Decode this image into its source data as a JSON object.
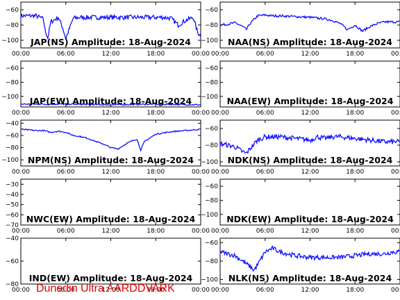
{
  "footer": "Dunedin Ultra AARDDVARK",
  "colors": {
    "trace": "#1010ff",
    "axis": "#000000",
    "footer": "#e00000"
  },
  "x_tick_labels": [
    "00:00",
    "06:00",
    "12:00",
    "18:00",
    "00:00"
  ],
  "chart_data": [
    {
      "type": "line",
      "title": "JAP(NS) Amplitude: 18-Aug-2024",
      "x_range": [
        0,
        24
      ],
      "ylim": [
        -110,
        -50
      ],
      "y_ticks": [
        -60,
        -80,
        -100
      ],
      "series": [
        {
          "x": [
            0,
            1,
            2,
            3,
            3.2,
            3.6,
            4,
            5,
            5.6,
            6,
            7,
            8,
            10,
            12,
            14,
            16,
            18,
            19,
            20,
            21,
            22,
            23,
            23.6,
            24
          ],
          "y": [
            -68,
            -68,
            -68,
            -72,
            -85,
            -97,
            -76,
            -70,
            -84,
            -98,
            -71,
            -70,
            -70,
            -70,
            -70,
            -70,
            -70,
            -70,
            -71,
            -80,
            -74,
            -70,
            -90,
            -94
          ],
          "noise": 6
        }
      ]
    },
    {
      "type": "line",
      "title": "NAA(NS) Amplitude: 18-Aug-2024",
      "x_range": [
        0,
        24
      ],
      "ylim": [
        -110,
        -50
      ],
      "y_ticks": [
        -60,
        -80,
        -100
      ],
      "series": [
        {
          "x": [
            0,
            1,
            2,
            3,
            3.5,
            4,
            5,
            6,
            7,
            8,
            10,
            12,
            14,
            15,
            16,
            17,
            18,
            19,
            20,
            21,
            22,
            23,
            24
          ],
          "y": [
            -80,
            -79,
            -77,
            -82,
            -86,
            -78,
            -68,
            -67,
            -68,
            -68,
            -69,
            -70,
            -72,
            -74,
            -78,
            -86,
            -80,
            -88,
            -82,
            -78,
            -76,
            -76,
            -76
          ],
          "noise": 3
        }
      ]
    },
    {
      "type": "line",
      "title": "JAP(EW) Amplitude: 18-Aug-2024",
      "x_range": [
        0,
        24
      ],
      "ylim": [
        -115,
        -50
      ],
      "y_ticks": [
        -60,
        -80,
        -100
      ],
      "series": [
        {
          "x": [
            0,
            6,
            12,
            18,
            24
          ],
          "y": [
            -111,
            -111,
            -112,
            -111,
            -112
          ],
          "noise": 2
        }
      ]
    },
    {
      "type": "line",
      "title": "NAA(EW) Amplitude: 18-Aug-2024",
      "x_range": [
        0,
        24
      ],
      "ylim": [
        -115,
        -50
      ],
      "y_ticks": [
        -60,
        -80,
        -100
      ],
      "series": []
    },
    {
      "type": "line",
      "title": "NPM(NS) Amplitude: 18-Aug-2024",
      "x_range": [
        0,
        24
      ],
      "ylim": [
        -110,
        -35
      ],
      "y_ticks": [
        -40,
        -60,
        -80,
        -100
      ],
      "series": [
        {
          "x": [
            0,
            2,
            3,
            4,
            5,
            6,
            7,
            8,
            9,
            10,
            11,
            12,
            13,
            14,
            15,
            15.5,
            16,
            16.5,
            17,
            17.5,
            18,
            19,
            20,
            21,
            22,
            23,
            24
          ],
          "y": [
            -50,
            -52,
            -52,
            -55,
            -53,
            -55,
            -60,
            -62,
            -65,
            -70,
            -74,
            -80,
            -82,
            -74,
            -68,
            -66,
            -84,
            -70,
            -66,
            -62,
            -58,
            -56,
            -54,
            -53,
            -52,
            -51,
            -50
          ],
          "noise": 2
        }
      ]
    },
    {
      "type": "line",
      "title": "NDK(NS) Amplitude: 18-Aug-2024",
      "x_range": [
        0,
        24
      ],
      "ylim": [
        -105,
        -50
      ],
      "y_ticks": [
        -60,
        -80,
        -100
      ],
      "series": [
        {
          "x": [
            0,
            1,
            2,
            3,
            3.5,
            4,
            5,
            6,
            7,
            8,
            10,
            12,
            13,
            14,
            15,
            16,
            18,
            20,
            22,
            24
          ],
          "y": [
            -78,
            -80,
            -82,
            -88,
            -90,
            -84,
            -74,
            -70,
            -70,
            -70,
            -72,
            -74,
            -70,
            -72,
            -70,
            -70,
            -72,
            -74,
            -76,
            -76
          ],
          "noise": 6
        }
      ]
    },
    {
      "type": "line",
      "title": "NWC(EW) Amplitude: 18-Aug-2024",
      "x_range": [
        0,
        24
      ],
      "ylim": [
        -70,
        -25
      ],
      "y_ticks": [
        -30,
        -40,
        -50,
        -60,
        -70
      ],
      "series": []
    },
    {
      "type": "line",
      "title": "NDK(EW) Amplitude: 18-Aug-2024",
      "x_range": [
        0,
        24
      ],
      "ylim": [
        -115,
        -50
      ],
      "y_ticks": [
        -60,
        -80,
        -100
      ],
      "series": []
    },
    {
      "type": "line",
      "title": "IND(EW) Amplitude: 18-Aug-2024",
      "x_range": [
        0,
        24
      ],
      "ylim": [
        -80,
        -40
      ],
      "y_ticks": [
        -40,
        -60,
        -80
      ],
      "series": []
    },
    {
      "type": "line",
      "title": "NLK(NS) Amplitude: 18-Aug-2024",
      "x_range": [
        0,
        24
      ],
      "ylim": [
        -105,
        -55
      ],
      "y_ticks": [
        -60,
        -80,
        -100
      ],
      "series": [
        {
          "x": [
            0,
            1,
            2,
            3,
            4,
            4.5,
            5,
            6,
            7,
            8,
            10,
            12,
            14,
            16,
            18,
            20,
            22,
            23,
            24
          ],
          "y": [
            -70,
            -72,
            -74,
            -80,
            -86,
            -90,
            -84,
            -70,
            -66,
            -70,
            -74,
            -76,
            -76,
            -76,
            -74,
            -72,
            -72,
            -70,
            -70
          ],
          "noise": 5
        }
      ]
    }
  ]
}
